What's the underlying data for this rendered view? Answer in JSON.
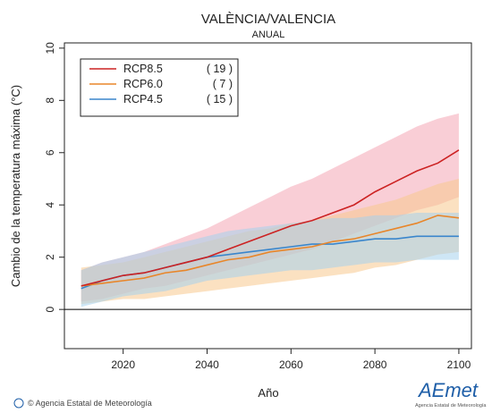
{
  "header": {
    "title": "VALÈNCIA/VALENCIA",
    "subtitle": "ANUAL"
  },
  "footer": {
    "credit": "© Agencia Estatal de Meteorología",
    "logo_text": "AEmet",
    "logo_subtext": "Agencia Estatal de Meteorología"
  },
  "colors": {
    "rcp85": "#cc2222",
    "rcp85_band": "#f4a6b4",
    "rcp60": "#e8862a",
    "rcp60_band": "#f7c98e",
    "rcp45": "#3a86cc",
    "rcp45_band": "#a6d2ec",
    "zero_line": "#000000"
  },
  "chart_data": {
    "type": "line",
    "title": "VALÈNCIA/VALENCIA",
    "subtitle": "ANUAL",
    "xlabel": "Año",
    "ylabel": "Cambio de la temperatura máxima (°C)",
    "xlim": [
      2006,
      2103
    ],
    "ylim": [
      -1.5,
      10.2
    ],
    "xticks": [
      2020,
      2040,
      2060,
      2080,
      2100
    ],
    "yticks": [
      0,
      2,
      4,
      6,
      8,
      10
    ],
    "grid": false,
    "legend_position": "top-left",
    "series": [
      {
        "name": "RCP8.5",
        "models": "( 19 )",
        "color_key": "rcp85",
        "x": [
          2010,
          2015,
          2020,
          2025,
          2030,
          2035,
          2040,
          2045,
          2050,
          2055,
          2060,
          2065,
          2070,
          2075,
          2080,
          2085,
          2090,
          2095,
          2100
        ],
        "mean": [
          0.9,
          1.1,
          1.3,
          1.4,
          1.6,
          1.8,
          2.0,
          2.3,
          2.6,
          2.9,
          3.2,
          3.4,
          3.7,
          4.0,
          4.5,
          4.9,
          5.3,
          5.6,
          6.1
        ],
        "low": [
          0.3,
          0.4,
          0.6,
          0.8,
          0.9,
          1.1,
          1.3,
          1.5,
          1.7,
          1.9,
          2.1,
          2.3,
          2.6,
          2.9,
          3.2,
          3.5,
          3.8,
          4.0,
          4.3
        ],
        "high": [
          1.5,
          1.8,
          2.0,
          2.2,
          2.5,
          2.8,
          3.1,
          3.5,
          3.9,
          4.3,
          4.7,
          5.0,
          5.4,
          5.8,
          6.2,
          6.6,
          7.0,
          7.3,
          7.5
        ]
      },
      {
        "name": "RCP6.0",
        "models": "(  7 )",
        "color_key": "rcp60",
        "x": [
          2010,
          2015,
          2020,
          2025,
          2030,
          2035,
          2040,
          2045,
          2050,
          2055,
          2060,
          2065,
          2070,
          2075,
          2080,
          2085,
          2090,
          2095,
          2100
        ],
        "mean": [
          0.9,
          1.0,
          1.1,
          1.2,
          1.4,
          1.5,
          1.7,
          1.9,
          2.0,
          2.2,
          2.3,
          2.4,
          2.6,
          2.7,
          2.9,
          3.1,
          3.3,
          3.6,
          3.5
        ],
        "low": [
          0.2,
          0.3,
          0.4,
          0.4,
          0.5,
          0.6,
          0.7,
          0.8,
          0.9,
          1.0,
          1.1,
          1.2,
          1.3,
          1.4,
          1.6,
          1.7,
          1.9,
          2.1,
          2.2
        ],
        "high": [
          1.6,
          1.7,
          1.8,
          2.0,
          2.2,
          2.4,
          2.6,
          2.8,
          3.0,
          3.1,
          3.3,
          3.4,
          3.6,
          3.8,
          4.0,
          4.2,
          4.5,
          4.8,
          5.0
        ]
      },
      {
        "name": "RCP4.5",
        "models": "( 15 )",
        "color_key": "rcp45",
        "x": [
          2010,
          2015,
          2020,
          2025,
          2030,
          2035,
          2040,
          2045,
          2050,
          2055,
          2060,
          2065,
          2070,
          2075,
          2080,
          2085,
          2090,
          2095,
          2100
        ],
        "mean": [
          0.8,
          1.1,
          1.3,
          1.4,
          1.6,
          1.8,
          2.0,
          2.1,
          2.2,
          2.3,
          2.4,
          2.5,
          2.5,
          2.6,
          2.7,
          2.7,
          2.8,
          2.8,
          2.8
        ],
        "low": [
          0.1,
          0.3,
          0.5,
          0.6,
          0.7,
          0.9,
          1.1,
          1.2,
          1.3,
          1.4,
          1.5,
          1.5,
          1.6,
          1.7,
          1.8,
          1.8,
          1.9,
          1.9,
          1.9
        ],
        "high": [
          1.5,
          1.8,
          2.0,
          2.2,
          2.4,
          2.6,
          2.8,
          3.0,
          3.1,
          3.2,
          3.3,
          3.4,
          3.5,
          3.5,
          3.6,
          3.6,
          3.7,
          3.7,
          3.7
        ]
      }
    ]
  }
}
